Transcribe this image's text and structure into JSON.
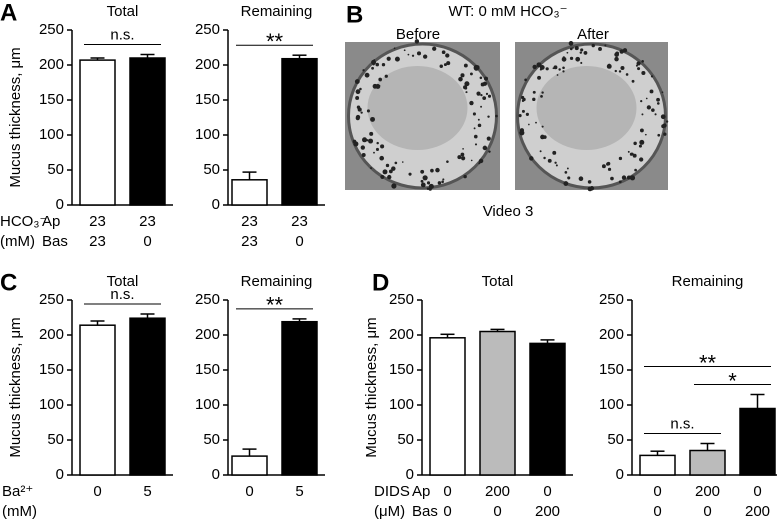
{
  "chart_data": [
    {
      "type": "bar",
      "panel_label": "A",
      "title": "Total",
      "y_label": "Mucus thickness, μm",
      "categories": [
        "23",
        "23"
      ],
      "categories_row2": [
        "23",
        "0"
      ],
      "row_labels": [
        [
          "HCO₃⁻",
          "Ap"
        ],
        [
          "(mM)",
          "Bas"
        ]
      ],
      "values": [
        207,
        210
      ],
      "errors": [
        3,
        5
      ],
      "colors": [
        "#ffffff",
        "#000000"
      ],
      "ylim": [
        0,
        250
      ],
      "yticks": [
        0,
        50,
        100,
        150,
        200,
        250
      ],
      "annotations": [
        {
          "text": "n.s.",
          "from": 0,
          "to": 1
        }
      ]
    },
    {
      "type": "bar",
      "title": "Remaining",
      "categories": [
        "23",
        "23"
      ],
      "categories_row2": [
        "23",
        "0"
      ],
      "values": [
        36,
        209
      ],
      "errors": [
        11,
        5
      ],
      "colors": [
        "#ffffff",
        "#000000"
      ],
      "ylim": [
        0,
        250
      ],
      "yticks": [
        0,
        50,
        100,
        150,
        200,
        250
      ],
      "annotations": [
        {
          "text": "**",
          "from": 0,
          "to": 1
        }
      ]
    },
    {
      "type": "bar",
      "panel_label": "C",
      "title": "Total",
      "y_label": "Mucus thickness, μm",
      "categories": [
        "0",
        "5"
      ],
      "row_labels": [
        [
          "Ba²⁺"
        ],
        [
          "(mM)"
        ]
      ],
      "values": [
        214,
        224
      ],
      "errors": [
        6,
        6
      ],
      "colors": [
        "#ffffff",
        "#000000"
      ],
      "ylim": [
        0,
        250
      ],
      "yticks": [
        0,
        50,
        100,
        150,
        200,
        250
      ],
      "annotations": [
        {
          "text": "n.s.",
          "from": 0,
          "to": 1
        }
      ]
    },
    {
      "type": "bar",
      "title": "Remaining",
      "categories": [
        "0",
        "5"
      ],
      "values": [
        27,
        219
      ],
      "errors": [
        10,
        4
      ],
      "colors": [
        "#ffffff",
        "#000000"
      ],
      "ylim": [
        0,
        250
      ],
      "yticks": [
        0,
        50,
        100,
        150,
        200,
        250
      ],
      "annotations": [
        {
          "text": "**",
          "from": 0,
          "to": 1
        }
      ]
    },
    {
      "type": "bar",
      "panel_label": "D",
      "title": "Total",
      "y_label": "Mucus thickness, μm",
      "categories": [
        "0",
        "200",
        "0"
      ],
      "categories_row2": [
        "0",
        "0",
        "200"
      ],
      "row_labels": [
        [
          "DIDS",
          "Ap"
        ],
        [
          "(μM)",
          "Bas"
        ]
      ],
      "values": [
        196,
        205,
        188
      ],
      "errors": [
        5,
        3,
        5
      ],
      "colors": [
        "#ffffff",
        "#bbbbbb",
        "#000000"
      ],
      "ylim": [
        0,
        250
      ],
      "yticks": [
        0,
        50,
        100,
        150,
        200,
        250
      ],
      "annotations": []
    },
    {
      "type": "bar",
      "title": "Remaining",
      "categories": [
        "0",
        "200",
        "0"
      ],
      "categories_row2": [
        "0",
        "0",
        "200"
      ],
      "values": [
        28,
        35,
        95
      ],
      "errors": [
        6,
        10,
        20
      ],
      "colors": [
        "#ffffff",
        "#bbbbbb",
        "#000000"
      ],
      "ylim": [
        0,
        250
      ],
      "yticks": [
        0,
        50,
        100,
        150,
        200,
        250
      ],
      "annotations": [
        {
          "text": "n.s.",
          "from": 0,
          "to": 1
        },
        {
          "text": "*",
          "from": 1,
          "to": 2
        },
        {
          "text": "**",
          "from": 0,
          "to": 2
        }
      ]
    }
  ],
  "panel_b": {
    "label": "B",
    "title": "WT: 0 mM HCO₃⁻",
    "images": [
      "Before",
      "After"
    ],
    "caption": "Video 3"
  }
}
